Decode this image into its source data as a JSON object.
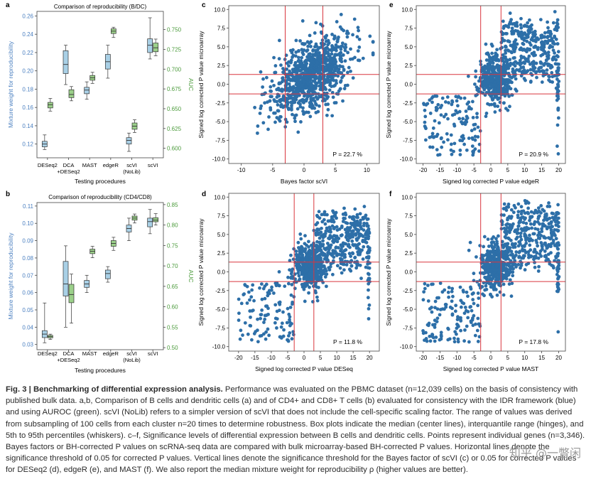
{
  "caption": {
    "fig_label": "Fig. 3 | Benchmarking of differential expression analysis.",
    "body": " Performance was evaluated on the PBMC dataset (n=12,039 cells) on the basis of consistency with published bulk data. a,b, Comparison of B cells and dendritic cells (a) and of CD4+ and CD8+ T cells (b) evaluated for consistency with the IDR framework (blue) and using AUROC (green). scVI (NoLib) refers to a simpler version of scVI that does not include the cell-specific scaling factor. The range of values was derived from subsampling of 100 cells from each cluster n=20 times to determine robustness. Box plots indicate the median (center lines), interquantile range (hinges), and 5th to 95th percentiles (whiskers). c–f, Significance levels of differential expression between B cells and dendritic cells. Points represent individual genes (n=3,346). Bayes factors or BH-corrected P values on scRNA-seq data are compared with bulk microarray-based BH-corrected P values. Horizontal lines denote the significance threshold of 0.05 for corrected P values. Vertical lines denote the significance threshold for the Bayes factor of scVI (c) or 0.05 for corrected P values for DESeq2 (d), edgeR (e), and MAST (f). We also report the median mixture weight for reproducibility ρ (higher values are better)."
  },
  "watermark": "知乎 @一瞥闲",
  "chart_data": [
    {
      "panel": "a",
      "type": "box",
      "title": "Comparison of reproducibility (B/DC)",
      "xlabel": "Testing procedures",
      "ylabel": "Mixture weight for reproducibility",
      "y2label": "AUC",
      "categories": [
        "DESeq2",
        "DCA\n+DESeq2",
        "MAST",
        "edgeR",
        "scVI\n(NoLib)",
        "scVI"
      ],
      "ylim": [
        0.105,
        0.265
      ],
      "yticks": [
        0.12,
        0.14,
        0.16,
        0.18,
        0.2,
        0.22,
        0.24,
        0.26
      ],
      "y2lim": [
        0.588,
        0.773
      ],
      "y2ticks": [
        0.6,
        0.625,
        0.65,
        0.675,
        0.7,
        0.725,
        0.75
      ],
      "series": [
        {
          "name": "IDR",
          "color": "#a9d0e6",
          "boxes": [
            [
              0.114,
              0.117,
              0.12,
              0.123,
              0.13
            ],
            [
              0.185,
              0.197,
              0.207,
              0.222,
              0.228
            ],
            [
              0.169,
              0.175,
              0.179,
              0.182,
              0.188
            ],
            [
              0.192,
              0.202,
              0.21,
              0.218,
              0.228
            ],
            [
              0.112,
              0.12,
              0.124,
              0.127,
              0.132
            ],
            [
              0.213,
              0.22,
              0.228,
              0.235,
              0.258
            ]
          ]
        },
        {
          "name": "AUROC",
          "color": "#9bd08a",
          "boxes": [
            [
              0.647,
              0.651,
              0.655,
              0.658,
              0.663
            ],
            [
              0.66,
              0.664,
              0.668,
              0.674,
              0.678
            ],
            [
              0.682,
              0.686,
              0.689,
              0.692,
              0.696
            ],
            [
              0.74,
              0.745,
              0.748,
              0.751,
              0.753
            ],
            [
              0.62,
              0.624,
              0.628,
              0.632,
              0.636
            ],
            [
              0.717,
              0.722,
              0.727,
              0.733,
              0.738
            ]
          ]
        }
      ]
    },
    {
      "panel": "b",
      "type": "box",
      "title": "Comparison of reproducibility (CD4/CD8)",
      "xlabel": "Testing procedures",
      "ylabel": "Mixture weight for reproducibility",
      "y2label": "AUC",
      "categories": [
        "DESeq2",
        "DCA\n+DESeq2",
        "MAST",
        "edgeR",
        "scVI\n(NoLib)",
        "scVI"
      ],
      "ylim": [
        0.027,
        0.112
      ],
      "yticks": [
        0.03,
        0.04,
        0.05,
        0.06,
        0.07,
        0.08,
        0.09,
        0.1,
        0.11
      ],
      "y2lim": [
        0.495,
        0.855
      ],
      "y2ticks": [
        0.5,
        0.55,
        0.6,
        0.65,
        0.7,
        0.75,
        0.8,
        0.85
      ],
      "series": [
        {
          "name": "IDR",
          "color": "#a9d0e6",
          "boxes": [
            [
              0.031,
              0.034,
              0.036,
              0.038,
              0.054
            ],
            [
              0.04,
              0.058,
              0.065,
              0.078,
              0.087
            ],
            [
              0.06,
              0.063,
              0.065,
              0.067,
              0.07
            ],
            [
              0.066,
              0.068,
              0.071,
              0.073,
              0.075
            ],
            [
              0.09,
              0.095,
              0.097,
              0.099,
              0.103
            ],
            [
              0.094,
              0.098,
              0.101,
              0.103,
              0.108
            ]
          ]
        },
        {
          "name": "AUROC",
          "color": "#9bd08a",
          "boxes": [
            [
              0.52,
              0.524,
              0.527,
              0.53,
              0.533
            ],
            [
              0.56,
              0.61,
              0.63,
              0.655,
              0.68
            ],
            [
              0.72,
              0.73,
              0.736,
              0.741,
              0.748
            ],
            [
              0.738,
              0.748,
              0.755,
              0.762,
              0.77
            ],
            [
              0.805,
              0.812,
              0.817,
              0.822,
              0.827
            ],
            [
              0.8,
              0.808,
              0.812,
              0.818,
              0.828
            ]
          ]
        }
      ]
    },
    {
      "panel": "c",
      "type": "scatter",
      "xlabel": "Bayes factor scVI",
      "ylabel": "Signed log corrected P value microarray",
      "xlim": [
        -12,
        12
      ],
      "ylim": [
        -10.6,
        10.5
      ],
      "xticks": [
        -10,
        -5,
        0,
        5,
        10
      ],
      "yticks": [
        -10.0,
        -7.5,
        -5.0,
        -2.5,
        0.0,
        2.5,
        5.0,
        7.5,
        10.0
      ],
      "vlines": [
        -3,
        3
      ],
      "hlines": [
        -1.3,
        1.3
      ],
      "annotation": "P = 22.7 %"
    },
    {
      "panel": "d",
      "type": "scatter",
      "xlabel": "Signed log corrected P value DESeq",
      "ylabel": "Signed log corrected P value microarray",
      "xlim": [
        -23,
        23
      ],
      "ylim": [
        -10.6,
        10.5
      ],
      "xticks": [
        -20,
        -15,
        -10,
        -5,
        0,
        5,
        10,
        15,
        20
      ],
      "yticks": [
        -10.0,
        -7.5,
        -5.0,
        -2.5,
        0.0,
        2.5,
        5.0,
        7.5,
        10.0
      ],
      "vlines": [
        -3,
        3
      ],
      "hlines": [
        -1.3,
        1.3
      ],
      "annotation": "P = 11.8 %"
    },
    {
      "panel": "e",
      "type": "scatter",
      "xlabel": "Signed log corrected P value edgeR",
      "ylabel": "Signed log corrected P value microarray",
      "xlim": [
        -22,
        22
      ],
      "ylim": [
        -10.6,
        10.5
      ],
      "xticks": [
        -20,
        -15,
        -10,
        -5,
        0,
        5,
        10,
        15,
        20
      ],
      "yticks": [
        -10.0,
        -7.5,
        -5.0,
        -2.5,
        0.0,
        2.5,
        5.0,
        7.5,
        10.0
      ],
      "vlines": [
        -3,
        3
      ],
      "hlines": [
        -1.3,
        1.3
      ],
      "annotation": "P = 20.9 %"
    },
    {
      "panel": "f",
      "type": "scatter",
      "xlabel": "Signed log corrected P value MAST",
      "ylabel": "Signed log corrected P value microarray",
      "xlim": [
        -22,
        22
      ],
      "ylim": [
        -10.6,
        10.5
      ],
      "xticks": [
        -20,
        -15,
        -10,
        -5,
        0,
        5,
        10,
        15,
        20
      ],
      "yticks": [
        -10.0,
        -7.5,
        -5.0,
        -2.5,
        0.0,
        2.5,
        5.0,
        7.5,
        10.0
      ],
      "vlines": [
        -3,
        3
      ],
      "hlines": [
        -1.3,
        1.3
      ],
      "annotation": "P = 17.8 %"
    }
  ],
  "colors": {
    "idr": "#4a7fc0",
    "auc": "#4a9a3a",
    "point": "#2d6fa8",
    "threshold": "#d9363e"
  }
}
